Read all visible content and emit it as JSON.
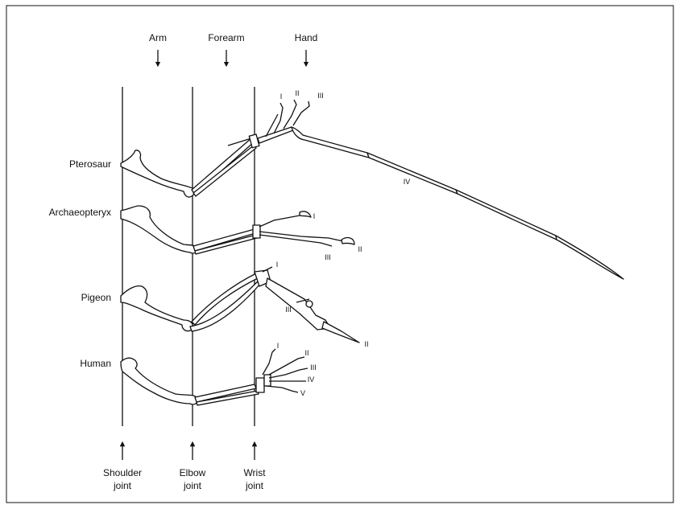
{
  "top_labels": {
    "arm": "Arm",
    "forearm": "Forearm",
    "hand": "Hand"
  },
  "bottom_labels": {
    "shoulder": [
      "Shoulder",
      "joint"
    ],
    "elbow": [
      "Elbow",
      "joint"
    ],
    "wrist": [
      "Wrist",
      "joint"
    ]
  },
  "species": {
    "pterosaur": "Pterosaur",
    "archaeopteryx": "Archaeopteryx",
    "pigeon": "Pigeon",
    "human": "Human"
  },
  "digits": {
    "pterosaur": [
      "I",
      "II",
      "III",
      "IV"
    ],
    "archaeopteryx": [
      "I",
      "II",
      "III"
    ],
    "pigeon": [
      "I",
      "II",
      "III"
    ],
    "human": [
      "I",
      "II",
      "III",
      "IV",
      "V"
    ]
  },
  "colors": {
    "ink": "#111111",
    "background": "#ffffff"
  }
}
